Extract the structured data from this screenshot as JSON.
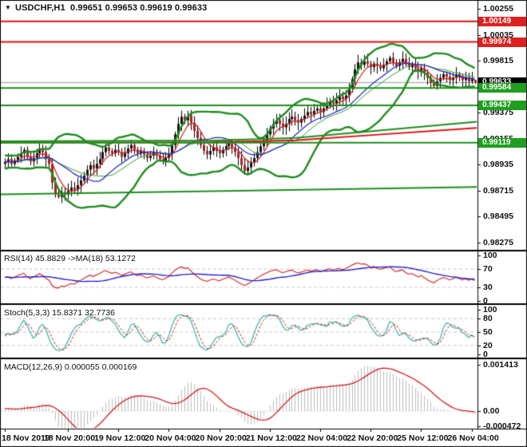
{
  "window": {
    "symbol_title": "USDCHF,H1",
    "ohlc": "0.99651 0.99653 0.99619 0.99633",
    "dropdown_icon": "symbol-dropdown"
  },
  "colors": {
    "background": "#ffffff",
    "frame": "#000000",
    "resistance_line": "#e01010",
    "support_line": "#1d8f1d",
    "tag_red_bg": "#dd2020",
    "tag_green_bg": "#1f9e1f",
    "tag_black_bg": "#000000",
    "candle_up": "#141414",
    "candle_down": "#ab2323",
    "wick": "#000000",
    "bollinger": "#1e8c1e",
    "ma_fast_red": "#d41d1d",
    "ma_slow_blue": "#2222cc",
    "bb_mid_green": "#2f9e2f",
    "long_ma_red": "#e01010",
    "long_ma_green": "#1d8f1d",
    "current_price_line": "#9a9a9a",
    "rsi_line": "#d41d1d",
    "rsi_ma_line": "#2424c8",
    "stoch_main": "#2fb3ac",
    "stoch_signal": "#d41d1d",
    "macd_histogram": "#bdbdbd",
    "macd_signal": "#d41d1d",
    "level_dashed": "#c9c9c9",
    "axis_text": "#111111"
  },
  "chart_data": {
    "type": "candlestick",
    "symbol": "USDCHF",
    "timeframe": "H1",
    "ohlc_display": {
      "open": "0.99651",
      "high": "0.99653",
      "low": "0.99619",
      "close": "0.99633"
    },
    "price_axis": {
      "ticks": [
        "1.00255",
        "1.00035",
        "0.99815",
        "0.99595",
        "0.99375",
        "0.99155",
        "0.98935",
        "0.98715",
        "0.98495",
        "0.98275"
      ],
      "tick_values": [
        1.00255,
        1.00035,
        0.99815,
        0.99595,
        0.99375,
        0.99155,
        0.98935,
        0.98715,
        0.98495,
        0.98275
      ],
      "range_top": 1.00262,
      "range_bottom": 0.9823
    },
    "time_axis": {
      "labels": [
        "18 Nov 2019",
        "18 Nov 20:00",
        "19 Nov 12:00",
        "20 Nov 04:00",
        "20 Nov 20:00",
        "21 Nov 12:00",
        "22 Nov 04:00",
        "22 Nov 20:00",
        "25 Nov 12:00",
        "26 Nov 04:00"
      ],
      "candle_indices": [
        0,
        20,
        36,
        52,
        68,
        84,
        100,
        116,
        132,
        148
      ]
    },
    "levels": [
      {
        "price": 1.00149,
        "label": "1.00149",
        "type": "resistance",
        "style": "red"
      },
      {
        "price": 0.99974,
        "label": "0.99974",
        "type": "resistance",
        "style": "red"
      },
      {
        "price": 0.99633,
        "label": "0.99633",
        "type": "current-price",
        "style": "black"
      },
      {
        "price": 0.99584,
        "label": "0.99584",
        "type": "support",
        "style": "green"
      },
      {
        "price": 0.99437,
        "label": "0.99437",
        "type": "support",
        "style": "green"
      },
      {
        "price": 0.99119,
        "label": "0.99119",
        "type": "support",
        "style": "green"
      }
    ],
    "current_price": 0.99633,
    "trendlines": [
      {
        "name": "long-ma-red",
        "color_key": "long_ma_red",
        "width": 2,
        "points": [
          [
            0,
            0.99122
          ],
          [
            0.45,
            0.99124
          ],
          [
            0.62,
            0.9914
          ],
          [
            0.8,
            0.9919
          ],
          [
            1,
            0.99245
          ]
        ]
      },
      {
        "name": "long-ma-green",
        "color_key": "long_ma_green",
        "width": 2,
        "points": [
          [
            0,
            0.99132
          ],
          [
            0.45,
            0.99138
          ],
          [
            0.62,
            0.9916
          ],
          [
            0.8,
            0.99225
          ],
          [
            1,
            0.99298
          ]
        ]
      },
      {
        "name": "lower-trend-green",
        "color_key": "long_ma_green",
        "width": 2,
        "points": [
          [
            0,
            0.98682
          ],
          [
            0.5,
            0.98712
          ],
          [
            1,
            0.98745
          ]
        ]
      }
    ],
    "candles": {
      "interval": "H1",
      "first_time": "18 Nov 2019 00:00",
      "last_time": "26 Nov 2019 05:00",
      "pre_closes": [
        0.9892,
        0.9895,
        0.989,
        0.9894,
        0.9898,
        0.9893,
        0.9889,
        0.9892,
        0.9896,
        0.9899,
        0.9895,
        0.9891,
        0.9894,
        0.9897,
        0.9893,
        0.989,
        0.9893,
        0.9897,
        0.99,
        0.9896,
        0.9892,
        0.9895,
        0.9898,
        0.9894,
        0.9891,
        0.9894,
        0.9898,
        0.9901,
        0.9897,
        0.9893,
        0.9896,
        0.9899,
        0.9895,
        0.9894
      ],
      "closes": [
        0.9896,
        0.9898,
        0.9894,
        0.9897,
        0.99,
        0.9903,
        0.9906,
        0.99,
        0.9896,
        0.9899,
        0.9903,
        0.9907,
        0.9904,
        0.9898,
        0.9894,
        0.9878,
        0.9868,
        0.9866,
        0.987,
        0.9868,
        0.9871,
        0.9874,
        0.9872,
        0.9876,
        0.988,
        0.9884,
        0.9889,
        0.9893,
        0.989,
        0.9894,
        0.9898,
        0.9904,
        0.9908,
        0.9905,
        0.9903,
        0.9906,
        0.9904,
        0.99,
        0.9903,
        0.9907,
        0.991,
        0.9906,
        0.9903,
        0.9905,
        0.9902,
        0.9899,
        0.9901,
        0.9904,
        0.9901,
        0.9898,
        0.9896,
        0.9899,
        0.9902,
        0.991,
        0.9919,
        0.9928,
        0.9934,
        0.9931,
        0.9935,
        0.9929,
        0.9922,
        0.9916,
        0.991,
        0.9905,
        0.9902,
        0.9905,
        0.9908,
        0.9905,
        0.9903,
        0.9906,
        0.9909,
        0.9912,
        0.9908,
        0.9904,
        0.9899,
        0.9893,
        0.9888,
        0.9891,
        0.9895,
        0.9899,
        0.9904,
        0.9909,
        0.9914,
        0.9919,
        0.9924,
        0.9928,
        0.9931,
        0.9928,
        0.9925,
        0.9928,
        0.9932,
        0.9934,
        0.9931,
        0.9929,
        0.9932,
        0.9935,
        0.9938,
        0.9936,
        0.9939,
        0.9941,
        0.9938,
        0.9941,
        0.9944,
        0.9947,
        0.9945,
        0.9948,
        0.9951,
        0.9949,
        0.9952,
        0.9958,
        0.9966,
        0.9974,
        0.998,
        0.9978,
        0.9981,
        0.9979,
        0.9976,
        0.9979,
        0.9977,
        0.9975,
        0.9978,
        0.9981,
        0.9984,
        0.998,
        0.9977,
        0.998,
        0.9983,
        0.9979,
        0.9976,
        0.9978,
        0.9975,
        0.9972,
        0.9975,
        0.9971,
        0.9967,
        0.9963,
        0.996,
        0.9964,
        0.9967,
        0.997,
        0.9968,
        0.9965,
        0.9967,
        0.997,
        0.9968,
        0.9965,
        0.9967,
        0.9964,
        0.9966,
        0.99633
      ],
      "overrides": {
        "17": {
          "l": 0.98645
        },
        "56": {
          "h": 0.99392
        },
        "58": {
          "h": 0.9939
        },
        "122": {
          "h": 0.99858
        },
        "136": {
          "l": 0.99586
        },
        "149": {
          "o": 0.99651,
          "h": 0.99653,
          "l": 0.99619,
          "c": 0.99633
        }
      }
    },
    "indicators": {
      "bollinger": {
        "period": 20,
        "deviation": 2
      },
      "ma_fast": {
        "period": 8,
        "method": "lwma"
      },
      "ma_slow": {
        "period": 16,
        "method": "sma"
      },
      "rsi": {
        "label": "RSI(14) 45.8829  ->MA(18) 53.1272",
        "period": 14,
        "ma_period": 18,
        "value": 45.8829,
        "ma_value": 53.1272,
        "levels": [
          70,
          30
        ],
        "axis_ticks": [
          "100",
          "70",
          "30",
          "0"
        ],
        "axis_values": [
          100,
          70,
          30,
          0
        ]
      },
      "stoch": {
        "label": "Stoch(5,3,3) 15.8371 32.7736",
        "k": 5,
        "d": 3,
        "slowing": 3,
        "value": 15.8371,
        "signal_value": 32.7736,
        "levels": [
          80,
          50,
          20
        ],
        "axis_ticks": [
          "100",
          "80",
          "50",
          "20",
          "0"
        ],
        "axis_values": [
          100,
          80,
          50,
          20,
          0
        ]
      },
      "macd": {
        "label": "MACD(12,26,9) 0.000055 0.000169",
        "fast": 12,
        "slow": 26,
        "signal": 9,
        "value": 5.5e-05,
        "signal_value": 0.000169,
        "axis_ticks": [
          "0.001413",
          "0.00",
          "-0.000472"
        ],
        "axis_values": [
          0.001413,
          0,
          -0.000472
        ]
      }
    }
  }
}
